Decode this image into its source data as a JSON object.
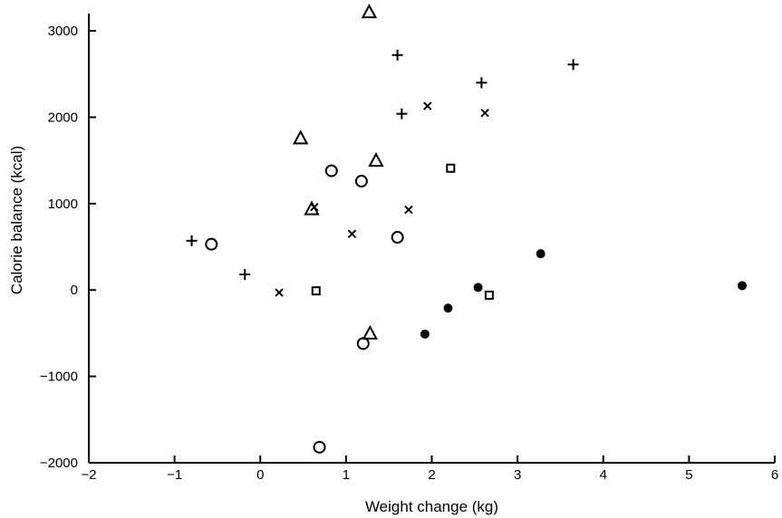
{
  "chart_data": {
    "type": "scatter",
    "title": "",
    "xlabel": "Weight change (kg)",
    "ylabel": "Calorie balance (kcal)",
    "xlim": [
      -2,
      6
    ],
    "ylim": [
      -2000,
      3200
    ],
    "x_ticks": [
      -2,
      -1,
      0,
      1,
      2,
      3,
      4,
      5,
      6
    ],
    "x_tick_labels": [
      "−2",
      "−1",
      "0",
      "1",
      "2",
      "3",
      "4",
      "5",
      "6"
    ],
    "y_ticks": [
      -2000,
      -1000,
      0,
      1000,
      2000,
      3000
    ],
    "y_tick_labels": [
      "−2000",
      "−1000",
      "0",
      "1000",
      "2000",
      "3000"
    ],
    "grid": false,
    "legend": "none",
    "series": [
      {
        "marker": "plus",
        "points": [
          {
            "x": -0.8,
            "y": 570
          },
          {
            "x": -0.18,
            "y": 180
          },
          {
            "x": 1.6,
            "y": 2720
          },
          {
            "x": 1.65,
            "y": 2040
          },
          {
            "x": 2.58,
            "y": 2400
          },
          {
            "x": 3.65,
            "y": 2610
          }
        ]
      },
      {
        "marker": "cross",
        "points": [
          {
            "x": 0.22,
            "y": -30
          },
          {
            "x": 0.63,
            "y": 960
          },
          {
            "x": 1.07,
            "y": 650
          },
          {
            "x": 1.73,
            "y": 930
          },
          {
            "x": 1.95,
            "y": 2130
          },
          {
            "x": 2.62,
            "y": 2050
          }
        ]
      },
      {
        "marker": "triangle",
        "points": [
          {
            "x": 0.47,
            "y": 1760
          },
          {
            "x": 0.6,
            "y": 940
          },
          {
            "x": 1.27,
            "y": 3220
          },
          {
            "x": 1.35,
            "y": 1500
          },
          {
            "x": 1.28,
            "y": -500
          }
        ]
      },
      {
        "marker": "circle",
        "points": [
          {
            "x": -0.57,
            "y": 530
          },
          {
            "x": 0.83,
            "y": 1380
          },
          {
            "x": 1.18,
            "y": 1260
          },
          {
            "x": 1.6,
            "y": 610
          },
          {
            "x": 1.2,
            "y": -620
          },
          {
            "x": 0.69,
            "y": -1820
          }
        ]
      },
      {
        "marker": "square",
        "points": [
          {
            "x": 0.65,
            "y": -10
          },
          {
            "x": 2.22,
            "y": 1410
          },
          {
            "x": 2.67,
            "y": -60
          }
        ]
      },
      {
        "marker": "filled-circle",
        "points": [
          {
            "x": 1.92,
            "y": -510
          },
          {
            "x": 2.19,
            "y": -210
          },
          {
            "x": 2.54,
            "y": 30
          },
          {
            "x": 3.27,
            "y": 420
          },
          {
            "x": 5.62,
            "y": 50
          }
        ]
      }
    ]
  }
}
